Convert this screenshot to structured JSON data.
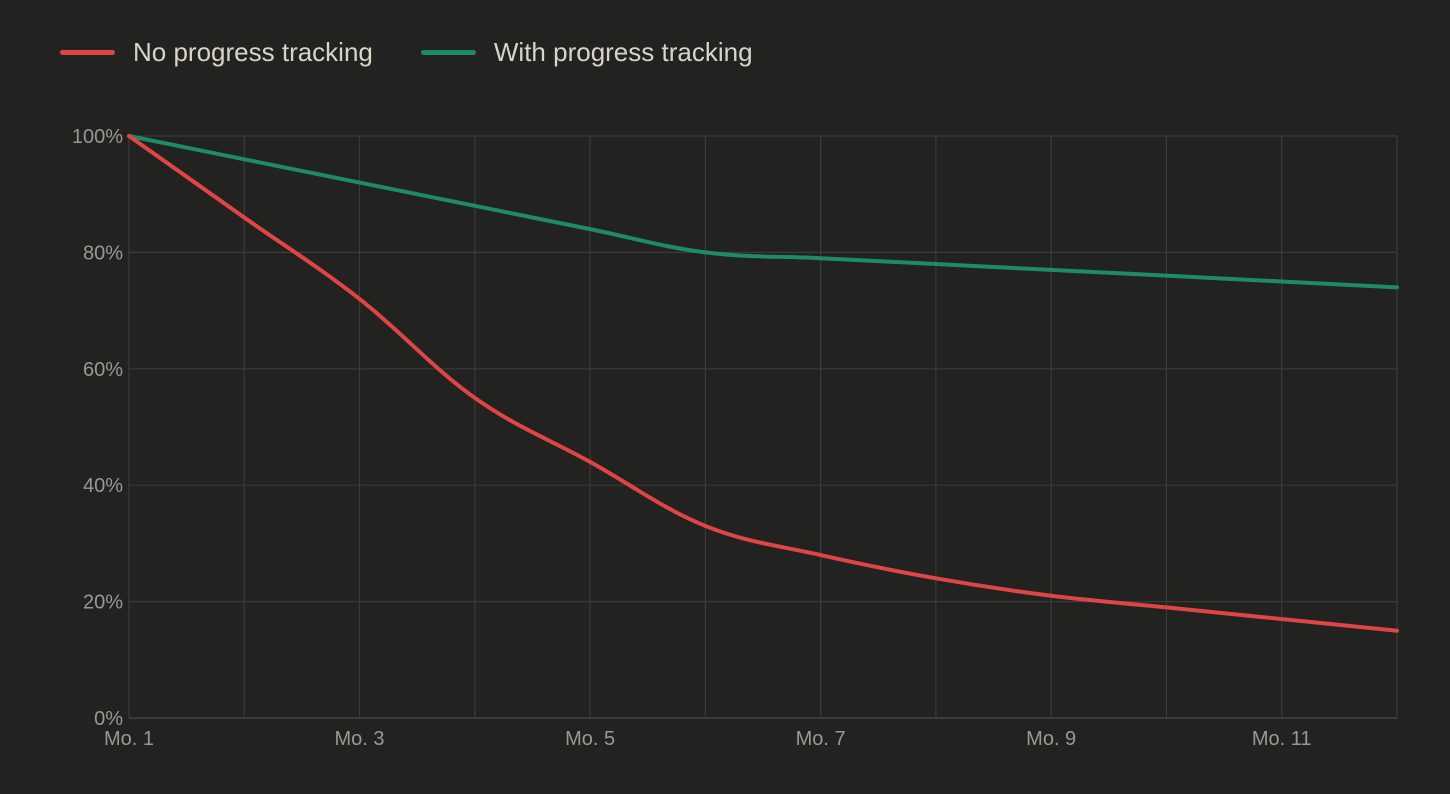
{
  "chart_data": {
    "type": "line",
    "x": [
      1,
      2,
      3,
      4,
      5,
      6,
      7,
      8,
      9,
      10,
      11,
      12
    ],
    "x_tick_labels": [
      "Mo. 1",
      "Mo. 3",
      "Mo. 5",
      "Mo. 7",
      "Mo. 9",
      "Mo. 11"
    ],
    "y_tick_labels": [
      "0%",
      "20%",
      "40%",
      "60%",
      "80%",
      "100%"
    ],
    "xlim": [
      1,
      12
    ],
    "ylim": [
      0,
      100
    ],
    "grid": true,
    "legend_position": "top-left",
    "series": [
      {
        "name": "No progress tracking",
        "color": "#e04545",
        "values": [
          100,
          86,
          72,
          55,
          44,
          33,
          28,
          24,
          21,
          19,
          17,
          15
        ]
      },
      {
        "name": "With progress tracking",
        "color": "#1e8c62",
        "values": [
          100,
          96,
          92,
          88,
          84,
          80,
          79,
          78,
          77,
          76,
          75,
          74
        ]
      }
    ]
  }
}
